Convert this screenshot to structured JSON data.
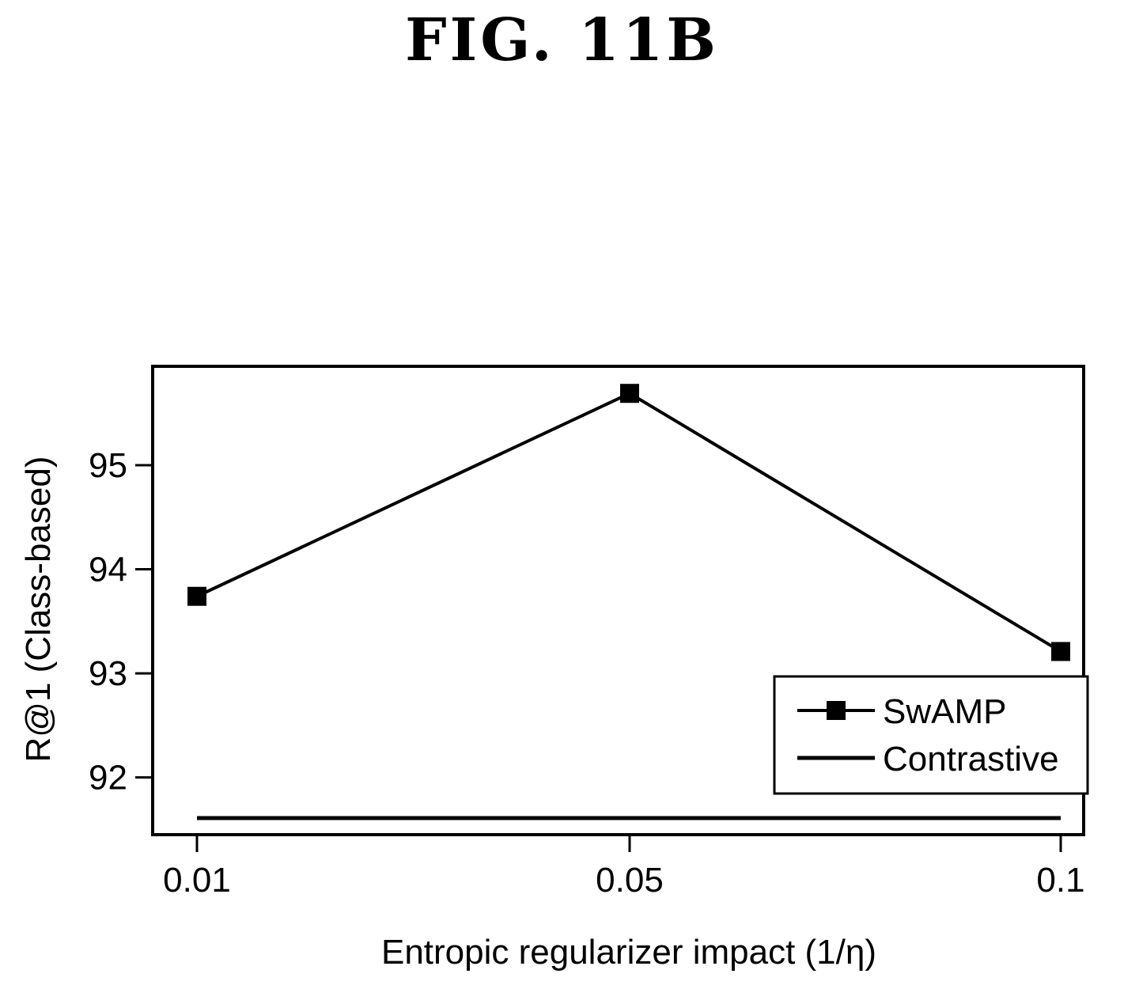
{
  "figure_title": "FIG. 11B",
  "chart_data": {
    "type": "line",
    "categories": [
      "0.01",
      "0.05",
      "0.1"
    ],
    "xlabel": "Entropic regularizer impact (1/η)",
    "ylabel": "R@1 (Class-based)",
    "yticks": [
      92,
      93,
      94,
      95
    ],
    "ylim": [
      91.45,
      95.95
    ],
    "grid": false,
    "legend_position": "bottom-right",
    "series": [
      {
        "name": "SwAMP",
        "values": [
          93.74,
          95.69,
          93.21
        ],
        "marker": "square",
        "color": "#000000"
      },
      {
        "name": "Contrastive",
        "values": [
          91.61,
          91.61,
          91.61
        ],
        "marker": "none",
        "color": "#000000"
      }
    ]
  }
}
